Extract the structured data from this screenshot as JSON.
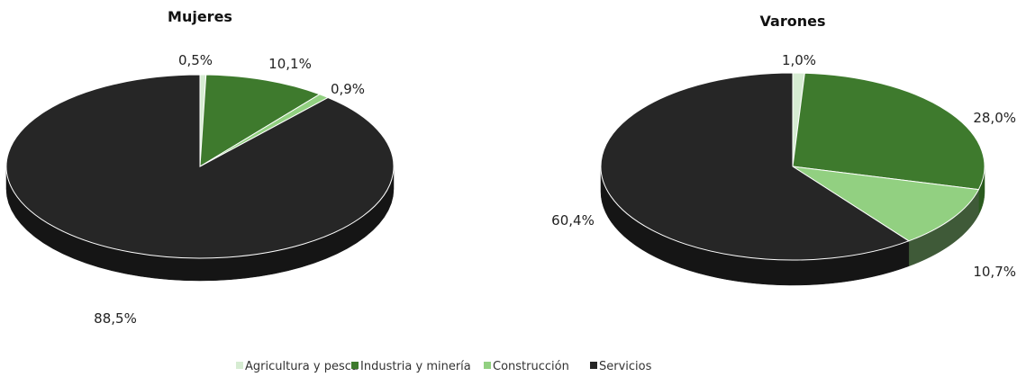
{
  "chart_data": [
    {
      "type": "pie",
      "title": "Mujeres",
      "categories": [
        "Agricultura y pesca",
        "Industria y minería",
        "Construcción",
        "Servicios"
      ],
      "values": [
        0.5,
        10.1,
        0.9,
        88.5
      ],
      "labels": [
        "0,5%",
        "10,1%",
        "0,9%",
        "88,5%"
      ]
    },
    {
      "type": "pie",
      "title": "Varones",
      "categories": [
        "Agricultura y pesca",
        "Industria y minería",
        "Construcción",
        "Servicios"
      ],
      "values": [
        1.0,
        28.0,
        10.7,
        60.4
      ],
      "labels": [
        "1,0%",
        "28,0%",
        "10,7%",
        "60,4%"
      ]
    }
  ],
  "legend": {
    "placement": "bottom",
    "items": [
      {
        "label": "Agricultura y pesca",
        "color": "#d6ecd2"
      },
      {
        "label": "Industria y minería",
        "color": "#3e7a2d"
      },
      {
        "label": "Construcción",
        "color": "#92d081"
      },
      {
        "label": "Servicios",
        "color": "#262626"
      }
    ]
  },
  "style": {
    "side_colors": [
      "#b6c9b2",
      "#2a5a1e",
      "#3f5a38",
      "#151515"
    ]
  }
}
